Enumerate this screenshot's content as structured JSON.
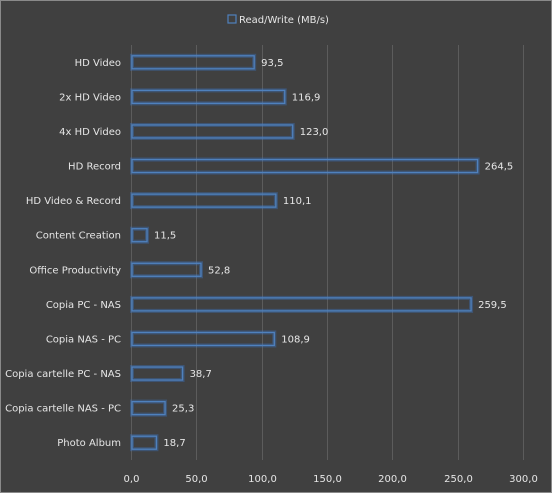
{
  "chart_data": {
    "type": "bar",
    "orientation": "horizontal",
    "legend": {
      "label": "Read/Write (MB/s)",
      "placement": "top"
    },
    "categories": [
      "HD Video",
      "2x HD Video",
      "4x HD Video",
      "HD Record",
      "HD Video & Record",
      "Content Creation",
      "Office Productivity",
      "Copia PC - NAS",
      "Copia NAS - PC",
      "Copia cartelle PC - NAS",
      "Copia cartelle NAS - PC",
      "Photo Album"
    ],
    "series": [
      {
        "name": "Read/Write (MB/s)",
        "values": [
          93.5,
          116.9,
          123.0,
          264.5,
          110.1,
          11.5,
          52.8,
          259.5,
          108.9,
          38.7,
          25.3,
          18.7
        ]
      }
    ],
    "value_labels": [
      "93,5",
      "116,9",
      "123,0",
      "264,5",
      "110,1",
      "11,5",
      "52,8",
      "259,5",
      "108,9",
      "38,7",
      "25,3",
      "18,7"
    ],
    "x_ticks": [
      0,
      50,
      100,
      150,
      200,
      250,
      300
    ],
    "x_tick_labels": [
      "0,0",
      "50,0",
      "100,0",
      "150,0",
      "200,0",
      "250,0",
      "300,0"
    ],
    "xlim": [
      0,
      300
    ],
    "grid": true,
    "colors": {
      "background": "#404040",
      "bar_outline": "#4f81bd",
      "text": "#e6e6e6",
      "grid": "#5c5c5c"
    }
  }
}
